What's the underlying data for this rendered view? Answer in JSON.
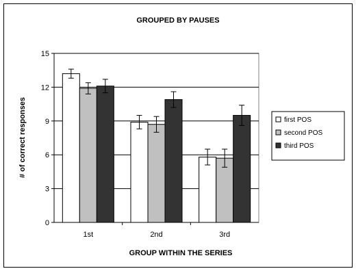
{
  "chart_data": {
    "type": "bar",
    "title": "GROUPED BY PAUSES",
    "xlabel": "GROUP WITHIN THE SERIES",
    "ylabel": "# of correct responses",
    "categories": [
      "1st",
      "2nd",
      "3rd"
    ],
    "ylim": [
      0,
      15
    ],
    "yticks": [
      0,
      3,
      6,
      9,
      12,
      15
    ],
    "grid": true,
    "legend_position": "right",
    "series": [
      {
        "name": "first POS",
        "color": "#ffffff",
        "values": [
          13.2,
          8.9,
          5.8
        ],
        "errors": [
          0.4,
          0.6,
          0.7
        ]
      },
      {
        "name": "second POS",
        "color": "#c0c0c0",
        "values": [
          11.9,
          8.7,
          5.7
        ],
        "errors": [
          0.5,
          0.7,
          0.8
        ]
      },
      {
        "name": "third POS",
        "color": "#333333",
        "values": [
          12.1,
          10.9,
          9.5
        ],
        "errors": [
          0.6,
          0.7,
          0.9
        ]
      }
    ]
  }
}
